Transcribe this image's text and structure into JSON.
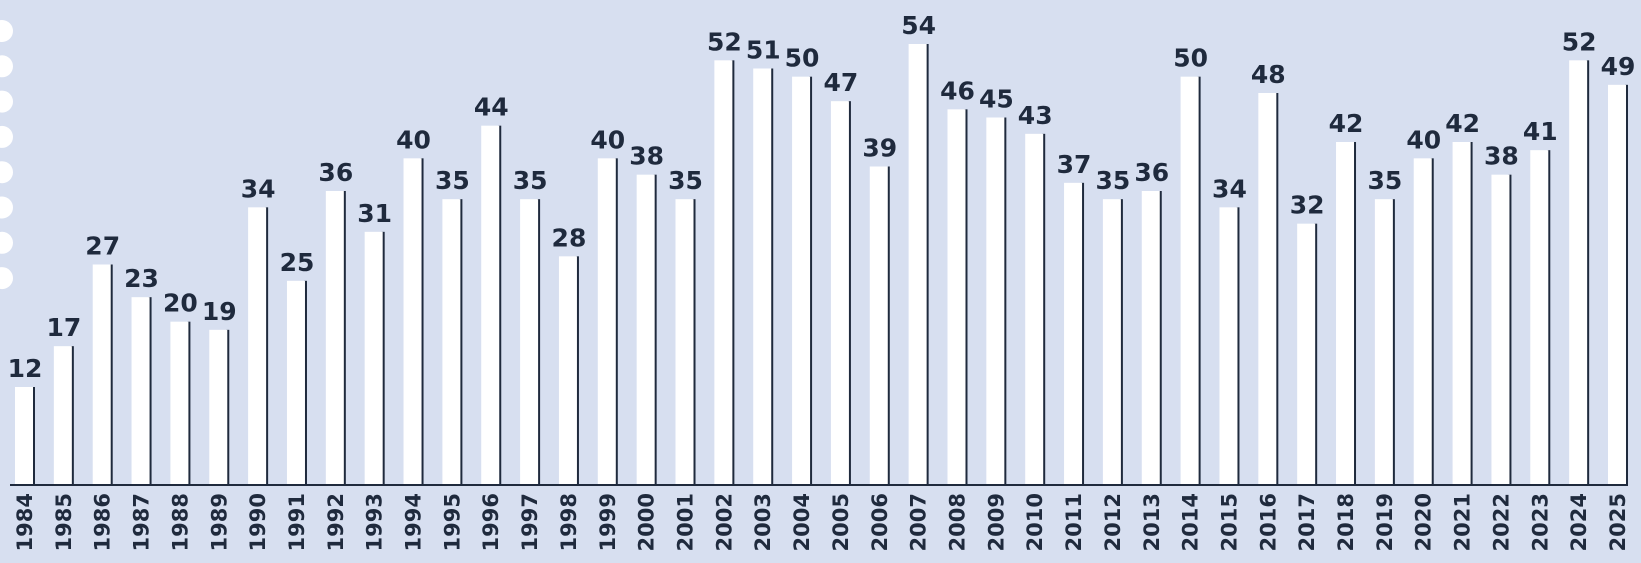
{
  "chart_data": {
    "type": "bar",
    "categories": [
      "1984",
      "1985",
      "1986",
      "1987",
      "1988",
      "1989",
      "1990",
      "1991",
      "1992",
      "1993",
      "1994",
      "1995",
      "1996",
      "1997",
      "1998",
      "1999",
      "2000",
      "2001",
      "2002",
      "2003",
      "2004",
      "2005",
      "2006",
      "2007",
      "2008",
      "2009",
      "2010",
      "2011",
      "2012",
      "2013",
      "2014",
      "2015",
      "2016",
      "2017",
      "2018",
      "2019",
      "2020",
      "2021",
      "2022",
      "2023",
      "2024",
      "2025"
    ],
    "values": [
      12,
      17,
      27,
      23,
      20,
      19,
      34,
      25,
      36,
      31,
      40,
      35,
      44,
      35,
      28,
      40,
      38,
      35,
      52,
      51,
      50,
      47,
      39,
      54,
      46,
      45,
      43,
      37,
      35,
      36,
      50,
      34,
      48,
      32,
      42,
      35,
      40,
      42,
      38,
      41,
      52,
      49
    ],
    "title": "",
    "xlabel": "",
    "ylabel": "",
    "ylim": [
      0,
      54
    ],
    "grid": false,
    "legend": "none",
    "data_labels": true
  },
  "colors": {
    "background": "#d7dff0",
    "bar_fill": "#ffffff",
    "bar_shadow": "#1f2a3d",
    "text": "#1f2a3d",
    "hole": "#ffffff"
  },
  "decorations": {
    "binder_holes": 8
  }
}
